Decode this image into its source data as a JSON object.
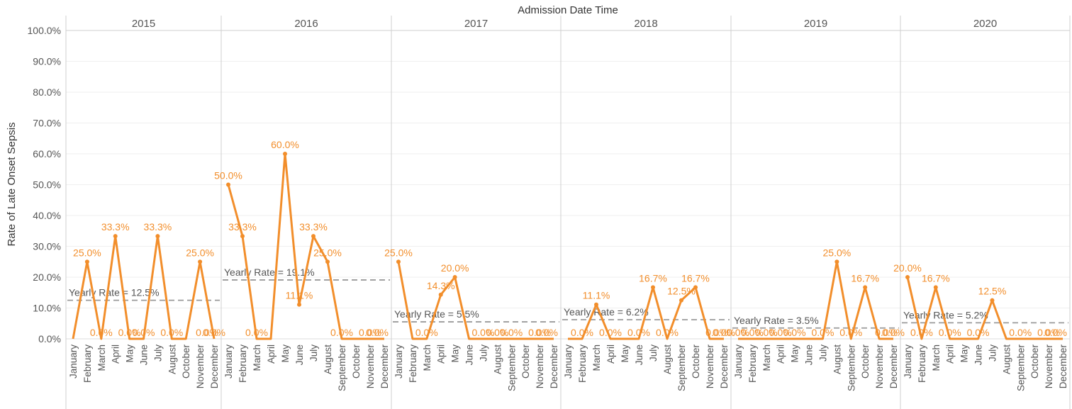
{
  "chart_data": {
    "type": "line",
    "title": "Admission Date Time",
    "ylabel": "Rate of Late Onset Sepsis",
    "xlabel": "",
    "ylim": [
      0,
      100
    ],
    "yticks": [
      0,
      10,
      20,
      30,
      40,
      50,
      60,
      70,
      80,
      90,
      100
    ],
    "ytick_labels": [
      "0.0%",
      "10.0%",
      "20.0%",
      "30.0%",
      "40.0%",
      "50.0%",
      "60.0%",
      "70.0%",
      "80.0%",
      "90.0%",
      "100.0%"
    ],
    "grid": true,
    "legend": "none",
    "line_color": "#f28e2b",
    "reference_color": "#9b9b9b",
    "panels": [
      {
        "year": "2015",
        "months": [
          "January",
          "February",
          "March",
          "April",
          "May",
          "June",
          "July",
          "August",
          "October",
          "November",
          "December"
        ],
        "values": [
          0,
          25,
          0,
          33.3,
          0,
          0,
          33.3,
          0,
          0,
          25,
          0
        ],
        "labels": [
          "",
          "25.0%",
          "0.0%",
          "33.3%",
          "0.0%",
          "0.0%",
          "33.3%",
          "0.0%",
          "",
          "25.0%",
          "0.0%"
        ],
        "extra_labels": [
          "0.0%"
        ],
        "yearly_rate": 12.5,
        "yearly_label": "Yearly Rate = 12.5%"
      },
      {
        "year": "2016",
        "months": [
          "January",
          "February",
          "March",
          "April",
          "May",
          "June",
          "July",
          "August",
          "September",
          "October",
          "November",
          "December"
        ],
        "values": [
          50,
          33.3,
          0,
          0,
          60,
          11.1,
          33.3,
          25,
          0,
          0,
          0,
          0
        ],
        "labels": [
          "50.0%",
          "33.3%",
          "0.0%",
          "",
          "60.0%",
          "11.1%",
          "33.3%",
          "25.0%",
          "0.0%",
          "",
          "0.0%",
          ""
        ],
        "extra_labels": [
          "0.0%"
        ],
        "yearly_rate": 19.1,
        "yearly_label": "Yearly Rate = 19.1%"
      },
      {
        "year": "2017",
        "months": [
          "January",
          "February",
          "March",
          "April",
          "May",
          "June",
          "July",
          "August",
          "September",
          "October",
          "November",
          "December"
        ],
        "values": [
          25,
          0,
          0,
          14.3,
          20,
          0,
          0,
          0,
          0,
          0,
          0,
          0
        ],
        "labels": [
          "25.0%",
          "",
          "0.0%",
          "14.3%",
          "20.0%",
          "",
          "0.0%",
          "0.0%",
          "0.0%",
          "",
          "0.0%",
          ""
        ],
        "extra_labels": [
          "0.0%"
        ],
        "yearly_rate": 5.5,
        "yearly_label": "Yearly Rate = 5.5%"
      },
      {
        "year": "2018",
        "months": [
          "January",
          "February",
          "March",
          "April",
          "May",
          "June",
          "July",
          "August",
          "September",
          "October",
          "November",
          "December"
        ],
        "values": [
          0,
          0,
          11.1,
          0,
          0,
          0,
          16.7,
          0,
          12.5,
          16.7,
          0,
          0
        ],
        "labels": [
          "",
          "0.0%",
          "11.1%",
          "0.0%",
          "",
          "0.0%",
          "16.7%",
          "0.0%",
          "12.5%",
          "16.7%",
          "",
          "0.0%"
        ],
        "extra_labels": [
          "0.0%"
        ],
        "yearly_rate": 6.2,
        "yearly_label": "Yearly Rate = 6.2%"
      },
      {
        "year": "2019",
        "months": [
          "January",
          "February",
          "March",
          "April",
          "May",
          "June",
          "July",
          "August",
          "September",
          "October",
          "November",
          "December"
        ],
        "values": [
          0,
          0,
          0,
          0,
          0,
          0,
          0,
          25,
          0,
          16.7,
          0,
          0
        ],
        "labels": [
          "0.0%",
          "0.0%",
          "0.0%",
          "0.0%",
          "0.0%",
          "",
          "0.0%",
          "25.0%",
          "0.0%",
          "16.7%",
          "",
          "0.0%"
        ],
        "extra_labels": [
          "0.0%"
        ],
        "yearly_rate": 3.5,
        "yearly_label": "Yearly Rate = 3.5%"
      },
      {
        "year": "2020",
        "months": [
          "January",
          "February",
          "March",
          "April",
          "May",
          "June",
          "July",
          "August",
          "September",
          "October",
          "November",
          "December"
        ],
        "values": [
          20,
          0,
          16.7,
          0,
          0,
          0,
          12.5,
          0,
          0,
          0,
          0,
          0
        ],
        "labels": [
          "20.0%",
          "0.0%",
          "16.7%",
          "0.0%",
          "",
          "0.0%",
          "12.5%",
          "",
          "0.0%",
          "",
          "0.0%",
          ""
        ],
        "extra_labels": [
          "0.0%"
        ],
        "yearly_rate": 5.2,
        "yearly_label": "Yearly Rate = 5.2%"
      }
    ]
  }
}
